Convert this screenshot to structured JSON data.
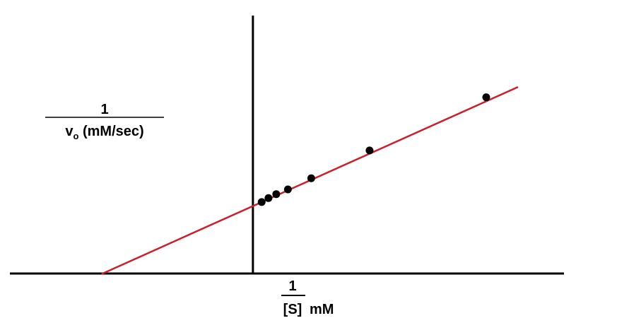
{
  "chart_data": {
    "type": "scatter",
    "title": "",
    "ylabel": {
      "numerator": "1",
      "denominator_main": "v",
      "denominator_sub": "o",
      "denominator_rest": " (mM/sec)"
    },
    "xlabel": {
      "numerator": "1",
      "denominator": "[S]",
      "unit": "mM"
    },
    "points": [
      {
        "x": 0.09,
        "y": 0.9
      },
      {
        "x": 0.16,
        "y": 0.95
      },
      {
        "x": 0.24,
        "y": 1.0
      },
      {
        "x": 0.36,
        "y": 1.06
      },
      {
        "x": 0.6,
        "y": 1.2
      },
      {
        "x": 1.2,
        "y": 1.55
      },
      {
        "x": 2.4,
        "y": 2.22
      }
    ],
    "fit_line": {
      "slope": 0.55,
      "intercept": 0.85,
      "x_start": -1.55,
      "x_end": 2.72
    },
    "xlim": [
      -2.5,
      3.2
    ],
    "ylim": [
      0,
      3.25
    ],
    "grid": false,
    "colors": {
      "line": "#cc1f2d",
      "points": "#000000",
      "axes": "#000000"
    }
  }
}
